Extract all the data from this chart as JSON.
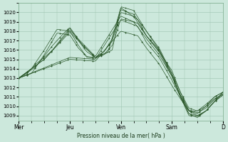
{
  "bg_color": "#cce8dc",
  "grid_color": "#9dc4b0",
  "line_color": "#2d5a2d",
  "marker_color": "#2d5a2d",
  "ylabel_text": "Pression niveau de la mer( hPa )",
  "ylim": [
    1008.5,
    1021.0
  ],
  "yticks": [
    1009,
    1010,
    1011,
    1012,
    1013,
    1014,
    1015,
    1016,
    1017,
    1018,
    1019,
    1020
  ],
  "xtick_labels": [
    "Mer",
    "Jeu",
    "Ven",
    "Sam",
    "D"
  ],
  "xtick_positions": [
    0,
    24,
    48,
    72,
    96
  ],
  "total_hours": 96,
  "series": [
    {
      "peaks": [
        [
          0,
          1013
        ],
        [
          6,
          1014
        ],
        [
          12,
          1016
        ],
        [
          18,
          1018.2
        ],
        [
          24,
          1018.0
        ],
        [
          28,
          1016.5
        ],
        [
          32,
          1015.2
        ],
        [
          36,
          1015.1
        ],
        [
          40,
          1015.5
        ],
        [
          44,
          1016.0
        ],
        [
          48,
          1020.6
        ],
        [
          54,
          1020.2
        ],
        [
          60,
          1018.0
        ],
        [
          66,
          1016.0
        ],
        [
          72,
          1013.5
        ],
        [
          76,
          1011.0
        ],
        [
          80,
          1009.2
        ],
        [
          84,
          1009.0
        ],
        [
          88,
          1009.5
        ],
        [
          92,
          1010.5
        ],
        [
          96,
          1011.2
        ]
      ],
      "marker": "+"
    },
    {
      "peaks": [
        [
          0,
          1013
        ],
        [
          6,
          1013.5
        ],
        [
          12,
          1015.5
        ],
        [
          18,
          1017.8
        ],
        [
          24,
          1017.6
        ],
        [
          28,
          1016.2
        ],
        [
          32,
          1015.3
        ],
        [
          36,
          1015.2
        ],
        [
          40,
          1015.8
        ],
        [
          44,
          1017.0
        ],
        [
          48,
          1020.0
        ],
        [
          54,
          1019.6
        ],
        [
          60,
          1017.5
        ],
        [
          66,
          1015.8
        ],
        [
          72,
          1013.8
        ],
        [
          76,
          1011.5
        ],
        [
          80,
          1009.8
        ],
        [
          84,
          1009.5
        ],
        [
          88,
          1010.0
        ],
        [
          92,
          1010.8
        ],
        [
          96,
          1011.3
        ]
      ],
      "marker": "."
    },
    {
      "peaks": [
        [
          0,
          1013
        ],
        [
          4,
          1013.5
        ],
        [
          8,
          1014.5
        ],
        [
          12,
          1015.2
        ],
        [
          16,
          1016.0
        ],
        [
          20,
          1017.2
        ],
        [
          24,
          1018.3
        ],
        [
          28,
          1017.0
        ],
        [
          32,
          1015.8
        ],
        [
          36,
          1015.2
        ],
        [
          40,
          1015.5
        ],
        [
          44,
          1016.5
        ],
        [
          48,
          1019.3
        ],
        [
          54,
          1019.0
        ],
        [
          60,
          1017.2
        ],
        [
          66,
          1015.5
        ],
        [
          72,
          1013.2
        ],
        [
          76,
          1011.2
        ],
        [
          80,
          1009.6
        ],
        [
          84,
          1009.3
        ],
        [
          88,
          1009.8
        ],
        [
          92,
          1010.7
        ],
        [
          96,
          1011.3
        ]
      ],
      "marker": "+"
    },
    {
      "peaks": [
        [
          0,
          1013
        ],
        [
          8,
          1014.2
        ],
        [
          16,
          1016.5
        ],
        [
          20,
          1017.5
        ],
        [
          24,
          1018.4
        ],
        [
          30,
          1016.5
        ],
        [
          36,
          1015.2
        ],
        [
          40,
          1015.8
        ],
        [
          44,
          1017.2
        ],
        [
          48,
          1020.3
        ],
        [
          54,
          1019.8
        ],
        [
          60,
          1018.0
        ],
        [
          66,
          1016.2
        ],
        [
          72,
          1013.5
        ],
        [
          76,
          1011.5
        ],
        [
          80,
          1009.5
        ],
        [
          84,
          1009.0
        ],
        [
          88,
          1009.5
        ],
        [
          92,
          1010.5
        ],
        [
          96,
          1011.2
        ]
      ],
      "marker": "."
    },
    {
      "peaks": [
        [
          0,
          1013
        ],
        [
          12,
          1015.0
        ],
        [
          24,
          1018.1
        ],
        [
          36,
          1015.3
        ],
        [
          48,
          1019.6
        ],
        [
          56,
          1018.8
        ],
        [
          60,
          1017.5
        ],
        [
          66,
          1015.8
        ],
        [
          72,
          1013.2
        ],
        [
          76,
          1011.0
        ],
        [
          80,
          1009.0
        ],
        [
          84,
          1008.9
        ],
        [
          88,
          1009.5
        ],
        [
          92,
          1010.5
        ],
        [
          96,
          1011.5
        ]
      ],
      "marker": "+"
    },
    {
      "peaks": [
        [
          0,
          1013
        ],
        [
          12,
          1015.0
        ],
        [
          24,
          1017.9
        ],
        [
          36,
          1015.2
        ],
        [
          42,
          1015.8
        ],
        [
          48,
          1020.5
        ],
        [
          56,
          1019.2
        ],
        [
          60,
          1017.5
        ],
        [
          66,
          1016.0
        ],
        [
          72,
          1013.3
        ],
        [
          76,
          1011.2
        ],
        [
          80,
          1009.2
        ],
        [
          84,
          1008.8
        ],
        [
          88,
          1009.5
        ],
        [
          92,
          1010.5
        ],
        [
          96,
          1011.5
        ]
      ],
      "marker": "."
    },
    {
      "peaks": [
        [
          0,
          1013
        ],
        [
          24,
          1015.2
        ],
        [
          36,
          1015.0
        ],
        [
          48,
          1019.2
        ],
        [
          56,
          1018.5
        ],
        [
          60,
          1016.8
        ],
        [
          66,
          1015.2
        ],
        [
          72,
          1012.8
        ],
        [
          76,
          1011.0
        ],
        [
          80,
          1009.5
        ],
        [
          84,
          1009.2
        ],
        [
          88,
          1010.0
        ],
        [
          92,
          1011.0
        ],
        [
          96,
          1011.5
        ]
      ],
      "marker": "+"
    },
    {
      "peaks": [
        [
          0,
          1013
        ],
        [
          24,
          1015.0
        ],
        [
          36,
          1014.8
        ],
        [
          48,
          1018.0
        ],
        [
          56,
          1017.5
        ],
        [
          60,
          1016.2
        ],
        [
          66,
          1014.5
        ],
        [
          72,
          1012.2
        ],
        [
          76,
          1010.8
        ],
        [
          80,
          1009.5
        ],
        [
          84,
          1009.5
        ],
        [
          88,
          1010.2
        ],
        [
          92,
          1011.0
        ],
        [
          96,
          1011.5
        ]
      ],
      "marker": "."
    }
  ]
}
